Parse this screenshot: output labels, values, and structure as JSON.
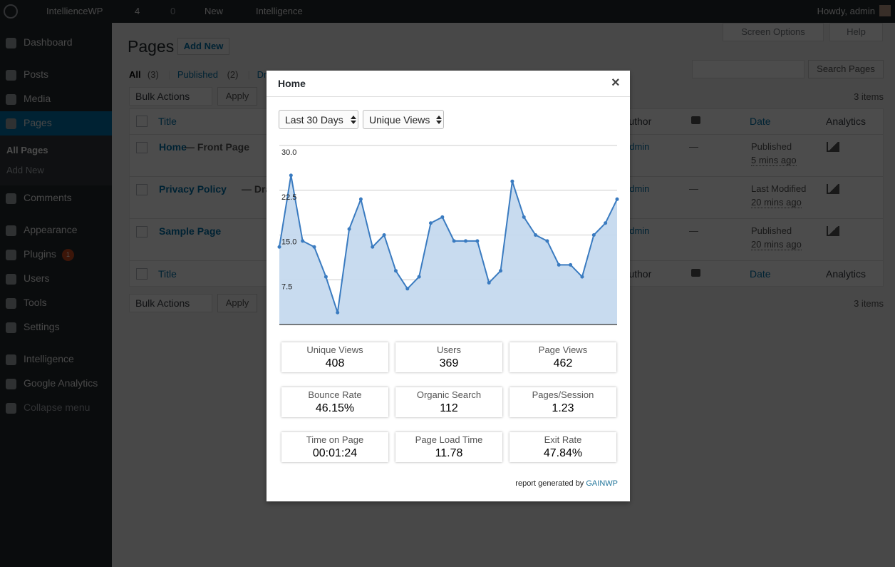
{
  "admin_bar": {
    "site": "IntellienceWP",
    "updates": "4",
    "comments": "0",
    "new": "New",
    "plugin": "Intelligence",
    "greeting": "Howdy, admin"
  },
  "menu": {
    "items": [
      "Dashboard",
      "Posts",
      "Media",
      "Pages",
      "Comments",
      "Appearance",
      "Plugins",
      "Users",
      "Tools",
      "Settings",
      "Intelligence",
      "Google Analytics",
      "Collapse menu"
    ],
    "submenu": [
      "All Pages",
      "Add New"
    ],
    "plugins_badge": "1"
  },
  "page": {
    "title": "Pages",
    "add_new": "Add New",
    "screen_options": "Screen Options",
    "help": "Help",
    "filters": [
      {
        "label": "All",
        "count": "(3)"
      },
      {
        "label": "Published",
        "count": "(2)"
      },
      {
        "label": "Draft"
      }
    ],
    "separator": "|",
    "search_button": "Search Pages",
    "bulk_actions": "Bulk Actions",
    "apply": "Apply",
    "items_count": "3 items",
    "columns": [
      "Title",
      "Author",
      "Date",
      "Analytics"
    ],
    "rows": [
      {
        "title": "Home",
        "state": "— Front Page",
        "author": "admin",
        "comments": "—",
        "status": "Published",
        "time": "5 mins ago"
      },
      {
        "title": "Privacy Policy",
        "state": "— Draft",
        "author": "admin",
        "comments": "—",
        "status": "Last Modified",
        "time": "20 mins ago"
      },
      {
        "title": "Sample Page",
        "author": "admin",
        "comments": "—",
        "status": "Published",
        "time": "20 mins ago"
      }
    ]
  },
  "modal": {
    "title": "Home",
    "close": "×",
    "range": "Last 30 Days",
    "metric": "Unique Views",
    "stats": [
      {
        "label": "Unique Views",
        "value": "408"
      },
      {
        "label": "Users",
        "value": "369"
      },
      {
        "label": "Page Views",
        "value": "462"
      },
      {
        "label": "Bounce Rate",
        "value": "46.15%"
      },
      {
        "label": "Organic Search",
        "value": "112"
      },
      {
        "label": "Pages/Session",
        "value": "1.23"
      },
      {
        "label": "Time on Page",
        "value": "00:01:24"
      },
      {
        "label": "Page Load Time",
        "value": "11.78"
      },
      {
        "label": "Exit Rate",
        "value": "47.84%"
      }
    ],
    "footer": "report generated by",
    "footer_link": "GAINWP"
  },
  "chart_data": {
    "type": "area",
    "categories": [
      null,
      null,
      null,
      null,
      null,
      null,
      null,
      null,
      null,
      null,
      null,
      null,
      null,
      null,
      null,
      null,
      null,
      null,
      null,
      null,
      null,
      null,
      null,
      null,
      null,
      null,
      null,
      null,
      null,
      null
    ],
    "values": [
      13,
      25,
      14,
      13,
      8,
      2,
      16,
      21,
      13,
      15,
      9,
      6,
      8,
      17,
      18,
      14,
      14,
      14,
      7,
      9,
      24,
      18,
      15,
      14,
      10,
      10,
      8,
      15,
      17,
      21
    ],
    "color": "#3a7bc0",
    "fill": "#c5d9ee",
    "ylim": [
      0,
      30
    ],
    "yticks": [
      {
        "value": 30,
        "label": "30.0"
      },
      22.5,
      {
        "value": 15,
        "label": "15.0"
      },
      7.5
    ],
    "grid": true
  }
}
